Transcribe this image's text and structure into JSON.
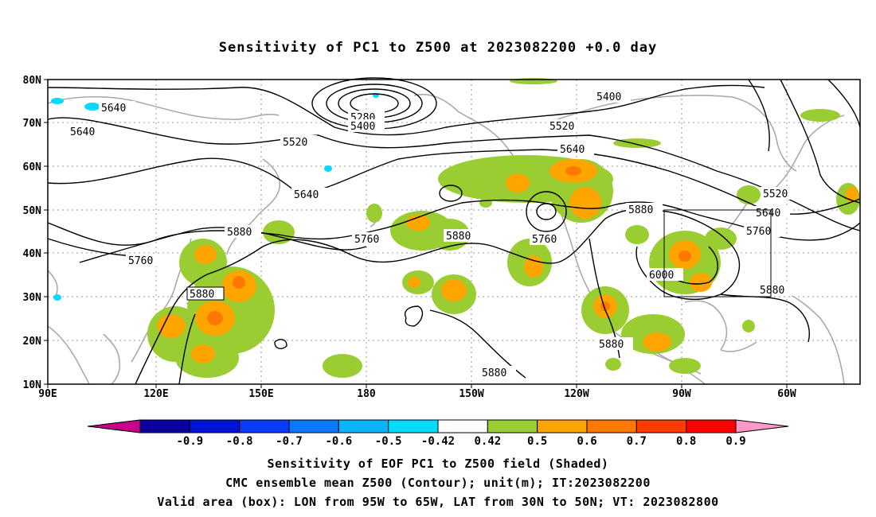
{
  "title": "Sensitivity of PC1 to Z500 at 2023082200 +0.0 day",
  "map": {
    "lat_labels": [
      "80N",
      "70N",
      "60N",
      "50N",
      "40N",
      "30N",
      "20N",
      "10N"
    ],
    "lon_labels": [
      "90E",
      "120E",
      "150E",
      "180",
      "150W",
      "120W",
      "90W",
      "60W"
    ],
    "contour_labels": [
      "5640",
      "5640",
      "5520",
      "5640",
      "5760",
      "5880",
      "5880",
      "5280",
      "5400",
      "5400",
      "5520",
      "5640",
      "5760",
      "5880",
      "5760",
      "5880",
      "6000",
      "5640",
      "5520",
      "5760",
      "5880",
      "5880",
      "5880"
    ],
    "valid_box": {
      "lon_range": [
        "95W",
        "65W"
      ],
      "lat_range": [
        "30N",
        "50N"
      ]
    }
  },
  "colorbar": {
    "labels": [
      "-0.9",
      "-0.8",
      "-0.7",
      "-0.6",
      "-0.5",
      "-0.42",
      "0.42",
      "0.5",
      "0.6",
      "0.7",
      "0.8",
      "0.9"
    ],
    "colors": [
      "#c8008c",
      "#0a00a0",
      "#0014d7",
      "#0a3cff",
      "#0a78ff",
      "#0ab4ff",
      "#00dcff",
      "#ffffff",
      "#9acd32",
      "#ffa500",
      "#ff7800",
      "#ff3c00",
      "#ff0000",
      "#ff9ac8"
    ]
  },
  "captions": [
    "Sensitivity of EOF PC1 to Z500 field (Shaded)",
    "CMC ensemble mean Z500 (Contour); unit(m); IT:2023082200",
    "Valid area (box): LON from 95W to 65W, LAT from 30N to 50N; VT: 2023082800"
  ]
}
